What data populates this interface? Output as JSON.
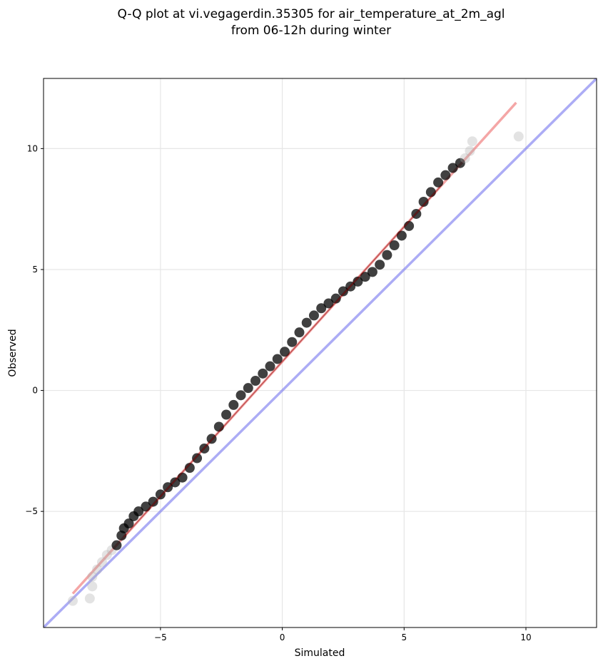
{
  "chart_data": {
    "type": "scatter",
    "title_lines": [
      "Q-Q plot at vi.vegagerdin.35305 for air_temperature_at_2m_agl",
      "from 06-12h during winter"
    ],
    "xlabel": "Simulated",
    "ylabel": "Observed",
    "xlim": [
      -9.8,
      12.9
    ],
    "ylim": [
      -9.8,
      12.9
    ],
    "xticks": [
      -5,
      0,
      5,
      10
    ],
    "yticks": [
      -5,
      0,
      5,
      10
    ],
    "xtick_labels": [
      "−5",
      "0",
      "5",
      "10"
    ],
    "ytick_labels": [
      "−5",
      "0",
      "5",
      "10"
    ],
    "grid": true,
    "colors": {
      "points": "#000000",
      "fit_line": "#f08080",
      "fit_line_inner": "#8b0000",
      "identity_line": "#8080f0"
    },
    "series": [
      {
        "kind": "quantile_points",
        "x": [
          -8.6,
          -7.9,
          -7.8,
          -7.8,
          -7.6,
          -7.4,
          -7.2,
          -7.0,
          -6.8,
          -6.6,
          -6.5,
          -6.3,
          -6.1,
          -5.9,
          -5.6,
          -5.3,
          -5.0,
          -4.7,
          -4.4,
          -4.1,
          -3.8,
          -3.5,
          -3.2,
          -2.9,
          -2.6,
          -2.3,
          -2.0,
          -1.7,
          -1.4,
          -1.1,
          -0.8,
          -0.5,
          -0.2,
          0.1,
          0.4,
          0.7,
          1.0,
          1.3,
          1.6,
          1.9,
          2.2,
          2.5,
          2.8,
          3.1,
          3.4,
          3.7,
          4.0,
          4.3,
          4.6,
          4.9,
          5.2,
          5.5,
          5.8,
          6.1,
          6.4,
          6.7,
          7.0,
          7.3,
          7.5,
          7.7,
          7.8,
          9.7
        ],
        "y": [
          -8.7,
          -8.6,
          -8.1,
          -7.7,
          -7.4,
          -7.1,
          -6.8,
          -6.6,
          -6.4,
          -6.0,
          -5.7,
          -5.5,
          -5.2,
          -5.0,
          -4.8,
          -4.6,
          -4.3,
          -4.0,
          -3.8,
          -3.6,
          -3.2,
          -2.8,
          -2.4,
          -2.0,
          -1.5,
          -1.0,
          -0.6,
          -0.2,
          0.1,
          0.4,
          0.7,
          1.0,
          1.3,
          1.6,
          2.0,
          2.4,
          2.8,
          3.1,
          3.4,
          3.6,
          3.8,
          4.1,
          4.3,
          4.5,
          4.7,
          4.9,
          5.2,
          5.6,
          6.0,
          6.4,
          6.8,
          7.3,
          7.8,
          8.2,
          8.6,
          8.9,
          9.2,
          9.4,
          9.6,
          9.9,
          10.3,
          10.5
        ]
      },
      {
        "kind": "fit_line",
        "x": [
          -8.6,
          9.6
        ],
        "y": [
          -8.4,
          11.9
        ]
      },
      {
        "kind": "identity_line",
        "x": [
          -9.8,
          12.9
        ],
        "y": [
          -9.8,
          12.9
        ]
      }
    ]
  }
}
